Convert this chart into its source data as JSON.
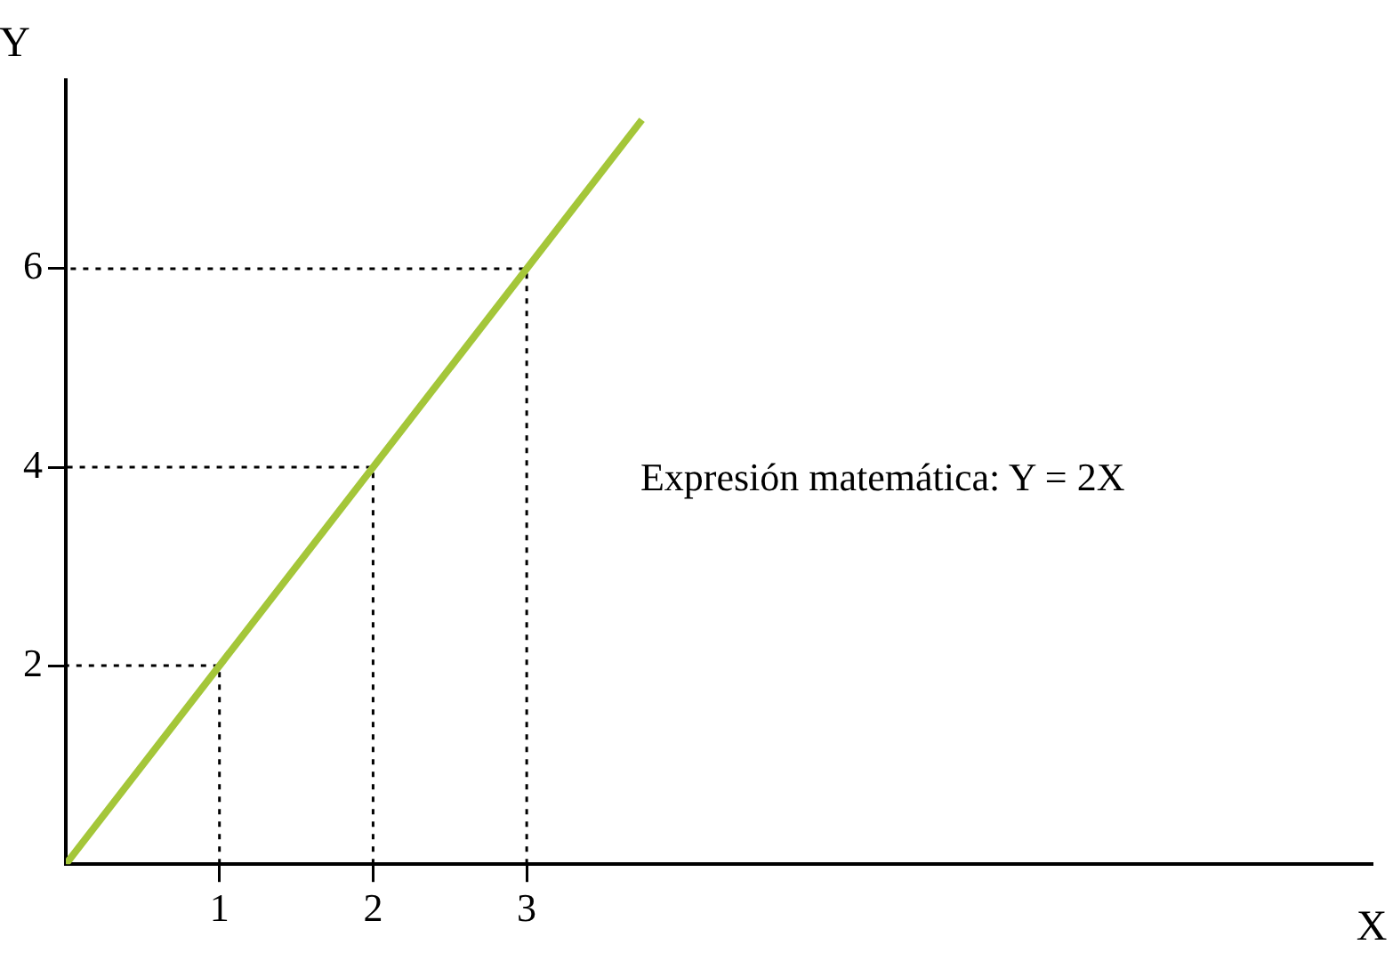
{
  "chart_data": {
    "type": "line",
    "xlabel": "X",
    "ylabel": "Y",
    "xlim": [
      0,
      8.5
    ],
    "ylim": [
      0,
      7.9
    ],
    "xticks": [
      1,
      2,
      3
    ],
    "yticks": [
      2,
      4,
      6
    ],
    "grid": false,
    "legend": false,
    "marker": "none",
    "series": [
      {
        "color": "#a4c639",
        "x": [
          0,
          3.75
        ],
        "values": [
          0,
          7.5
        ],
        "line_style": "solid"
      },
      {
        "color": "#000000",
        "x": [
          1,
          1,
          0
        ],
        "values": [
          0,
          2,
          2
        ],
        "line_style": "dotted"
      },
      {
        "color": "#000000",
        "x": [
          2,
          2,
          0
        ],
        "values": [
          0,
          4,
          4
        ],
        "line_style": "dotted"
      },
      {
        "color": "#000000",
        "x": [
          3,
          3,
          0
        ],
        "values": [
          0,
          6,
          6
        ],
        "line_style": "dotted"
      }
    ],
    "annotations": [
      "Expresión matemática: Y = 2X"
    ]
  }
}
